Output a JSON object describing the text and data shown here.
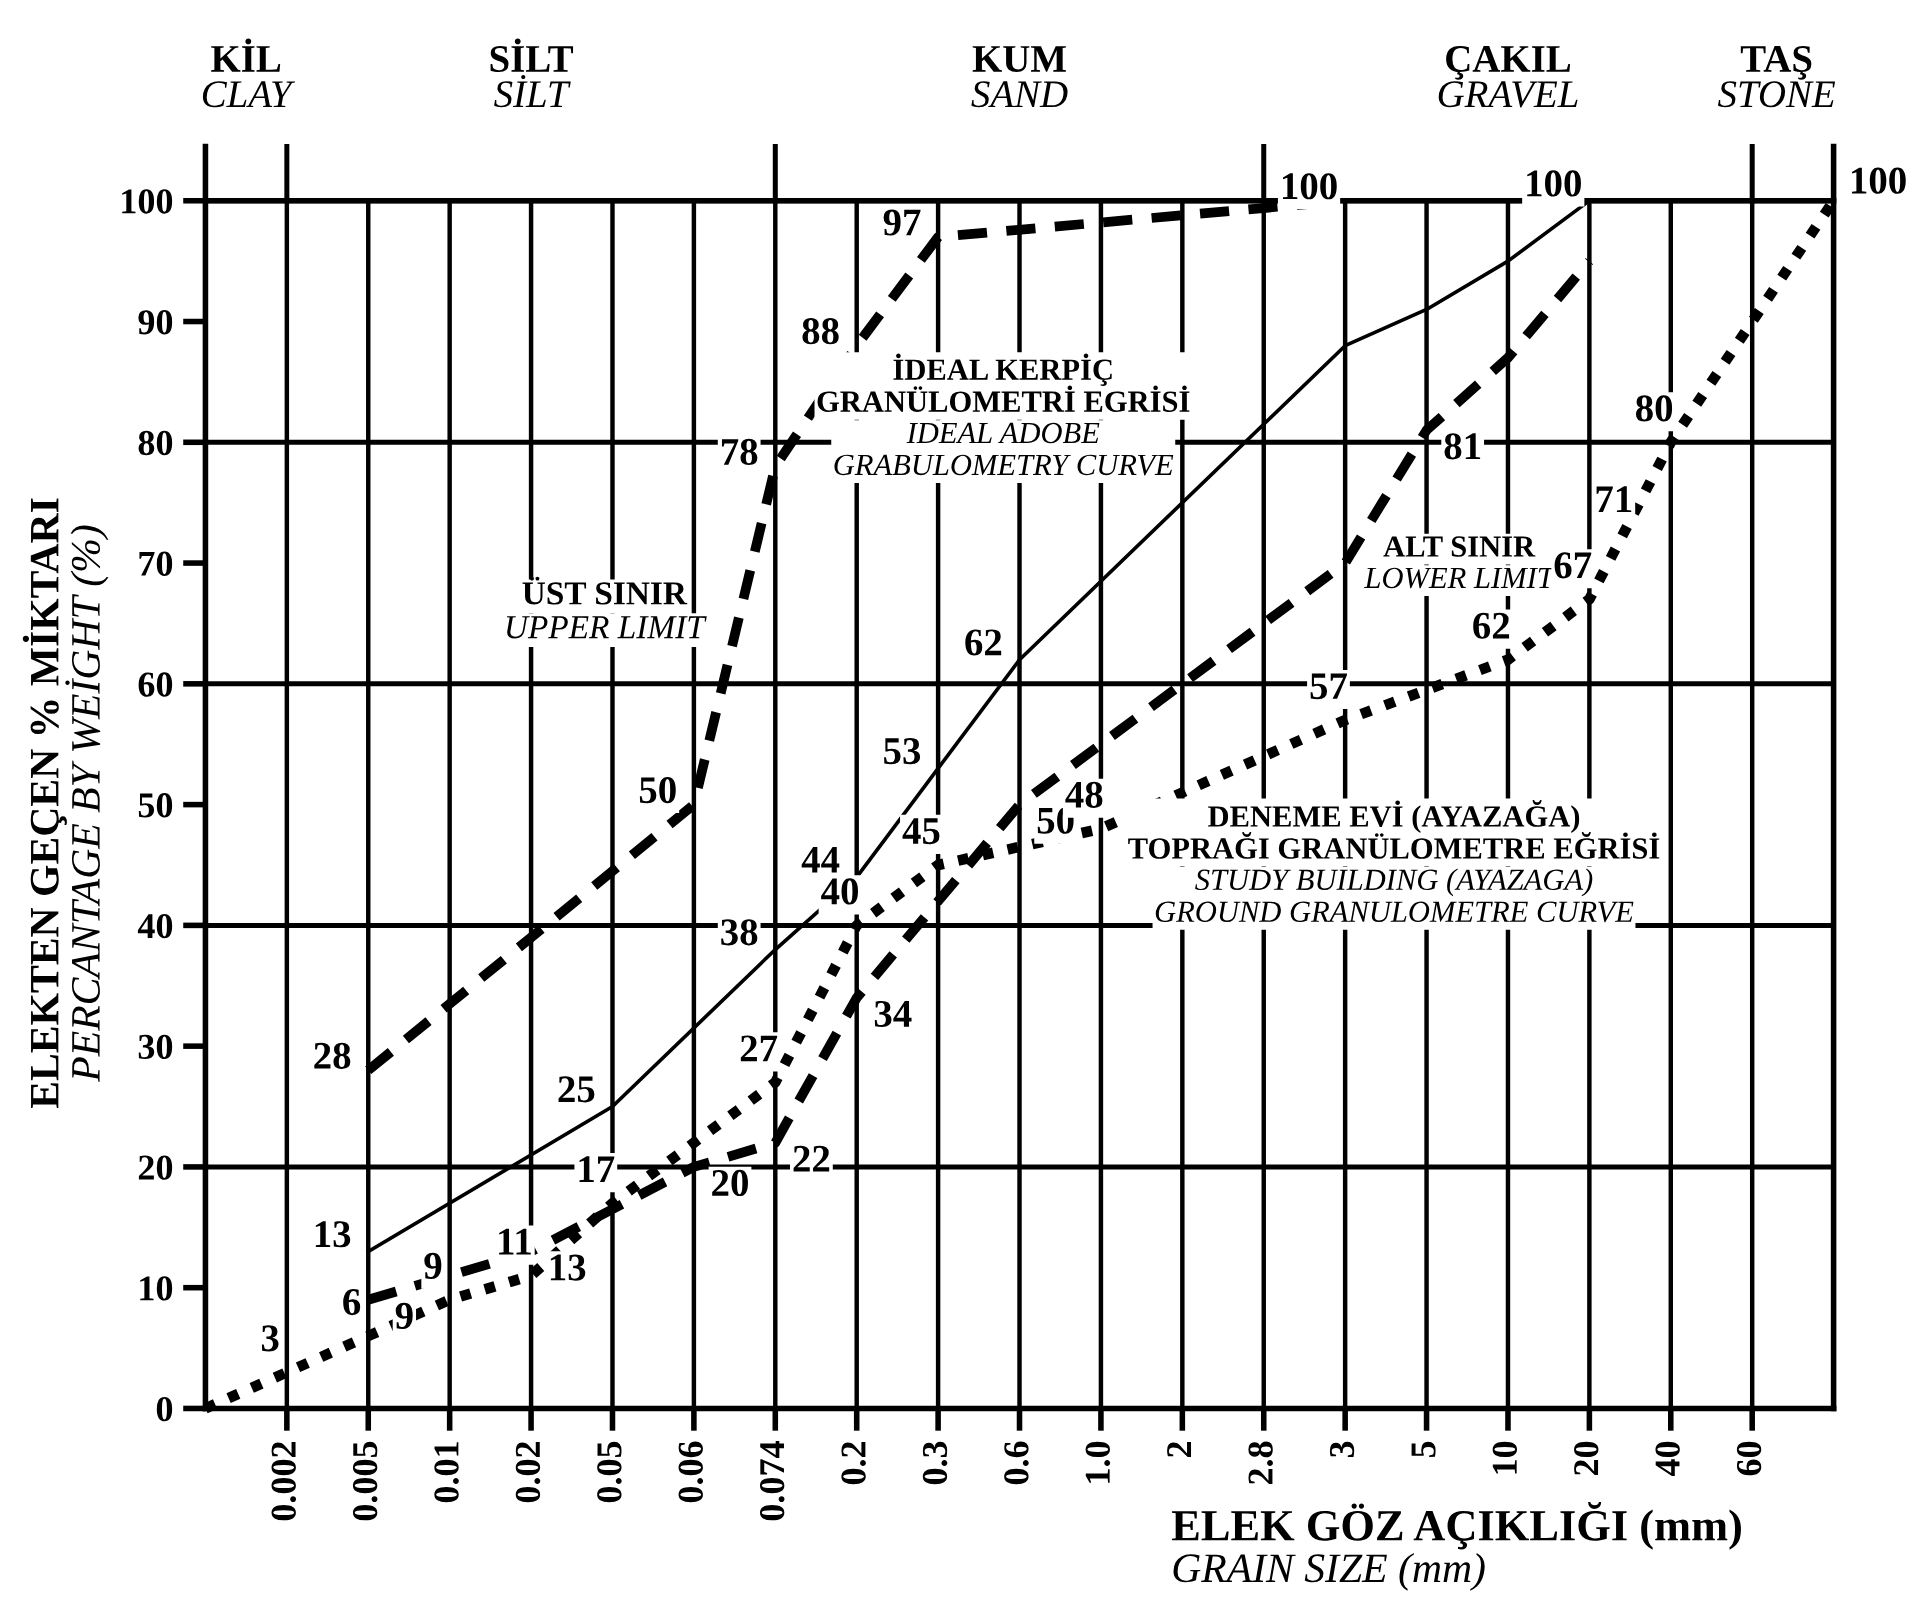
{
  "chart_data": {
    "type": "line",
    "ylabel": "ELEKTEN GEÇEN % MİKTARI\nPERCANTAGE BY WEİGHT (%)",
    "xlabel": "ELEK GÖZ AÇIKLIĞI (mm)\nGRAIN SIZE (mm)",
    "categories": [
      null,
      "0.002",
      "0.005",
      "0.01",
      "0.02",
      "0.05",
      "0.06",
      "0.074",
      "0.2",
      "0.3",
      "0.6",
      "1.0",
      "2",
      "2.8",
      "3",
      "5",
      "10",
      "20",
      "40",
      "60",
      null
    ],
    "series": [
      {
        "name": "ÜST SINIR\nUPPER LIMIT",
        "color": "#000000",
        "line_style": "dashed",
        "values": [
          null,
          null,
          28,
          null,
          null,
          null,
          50,
          78,
          88,
          97,
          null,
          null,
          null,
          null,
          100,
          null,
          null,
          null,
          null,
          null,
          null
        ],
        "value_labels": [
          null,
          null,
          "28",
          null,
          null,
          null,
          "50",
          "78",
          "88",
          "97",
          null,
          null,
          null,
          null,
          "100",
          null,
          null,
          null,
          null,
          null,
          null
        ]
      },
      {
        "name": "İDEAL KERPİÇ\nGRANÜLOMETRİ EGRİSİ\nIDEAL ADOBE\nGRABULOMETRY CURVE",
        "color": "#000000",
        "line_style": "solid",
        "values": [
          null,
          null,
          13,
          null,
          null,
          25,
          null,
          38,
          44,
          53,
          62,
          null,
          null,
          null,
          88,
          91,
          95,
          100,
          null,
          null,
          null
        ],
        "value_labels": [
          null,
          null,
          "13",
          null,
          null,
          "25",
          null,
          "38",
          "44",
          "53",
          "62",
          null,
          null,
          null,
          null,
          null,
          null,
          "100",
          null,
          null,
          null
        ]
      },
      {
        "name": "ALT SINIR\nLOWER LIMIT",
        "color": "#000000",
        "line_style": "dashed",
        "values": [
          null,
          null,
          9,
          null,
          13,
          null,
          20,
          22,
          34,
          null,
          50,
          null,
          null,
          null,
          70,
          81,
          87,
          95,
          null,
          null,
          null
        ],
        "value_labels": [
          null,
          null,
          "9",
          null,
          "13",
          null,
          "20",
          "22",
          "34",
          null,
          "50",
          null,
          null,
          null,
          null,
          "81",
          null,
          null,
          null,
          null,
          null
        ]
      },
      {
        "name": "DENEME EVİ (AYAZAĞA)\nTOPRAĞI GRANÜLOMETRE EĞRİSİ\nSTUDY BUILDING (AYAZAGA)\nGROUND GRANULOMETRE CURVE",
        "color": "#000000",
        "line_style": "dotted",
        "values": [
          0,
          3,
          6,
          9,
          11,
          17,
          null,
          27,
          40,
          45,
          null,
          48,
          null,
          null,
          57,
          null,
          62,
          67,
          80,
          null,
          100
        ],
        "value_labels": [
          null,
          "3",
          "6",
          "9",
          "11",
          "17",
          null,
          "27",
          "40",
          "45",
          null,
          "48",
          null,
          null,
          "57",
          null,
          "62",
          "67",
          "80",
          null,
          "100"
        ]
      }
    ],
    "annotations": [
      "71",
      "KİL\nCLAY",
      "SİLT\nSİLT",
      "KUM\nSAND",
      "ÇAKIL\nGRAVEL",
      "TAŞ\nSTONE"
    ],
    "ref_lines": [
      {
        "axis": "y",
        "value": 20
      },
      {
        "axis": "y",
        "value": 40
      },
      {
        "axis": "y",
        "value": 60
      },
      {
        "axis": "y",
        "value": 80
      },
      {
        "axis": "y",
        "value": 100
      }
    ],
    "ylim": [
      0,
      100
    ],
    "yticks": [
      0,
      10,
      20,
      30,
      40,
      50,
      60,
      70,
      80,
      90,
      100
    ],
    "grid": "x",
    "legend": false,
    "marker": "none"
  }
}
